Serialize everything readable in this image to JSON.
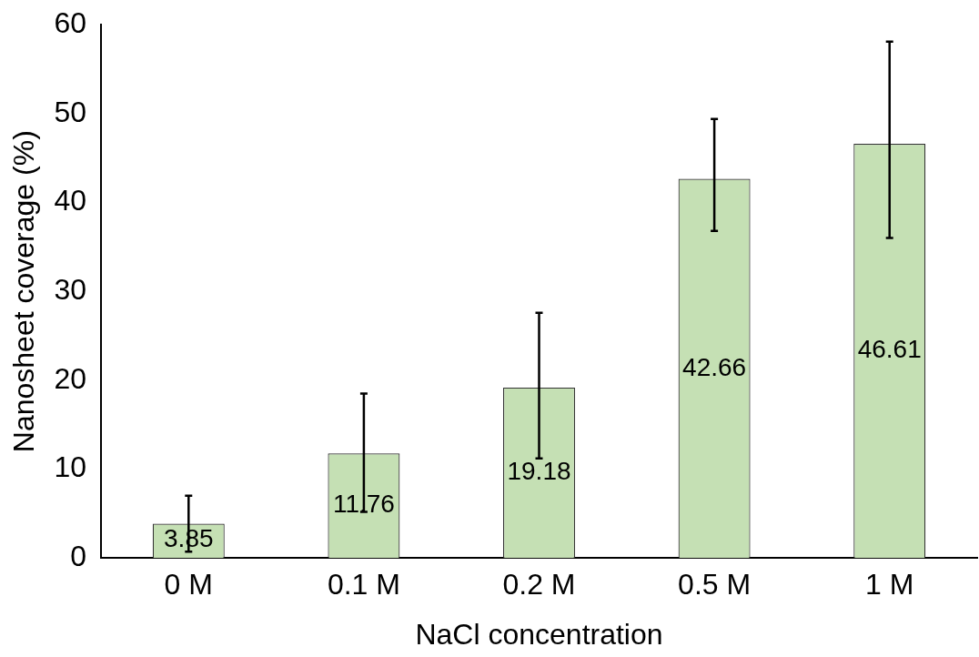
{
  "chart_data": {
    "type": "bar",
    "xlabel": "NaCl concentration",
    "ylabel": "Nanosheet coverage (%)",
    "categories": [
      "0 M",
      "0.1 M",
      "0.2 M",
      "0.5 M",
      "1 M"
    ],
    "values": [
      3.85,
      11.76,
      19.18,
      42.66,
      46.61
    ],
    "errors": [
      [
        0.7,
        7.0
      ],
      [
        5.2,
        18.5
      ],
      [
        11.2,
        27.6
      ],
      [
        36.8,
        49.4
      ],
      [
        36.0,
        58.1
      ]
    ],
    "color": "#c5e0b4",
    "ylim": [
      0,
      60
    ],
    "yticks": [
      0,
      10,
      20,
      30,
      40,
      50,
      60
    ],
    "data_labels": true,
    "grid": false,
    "legend": false
  }
}
